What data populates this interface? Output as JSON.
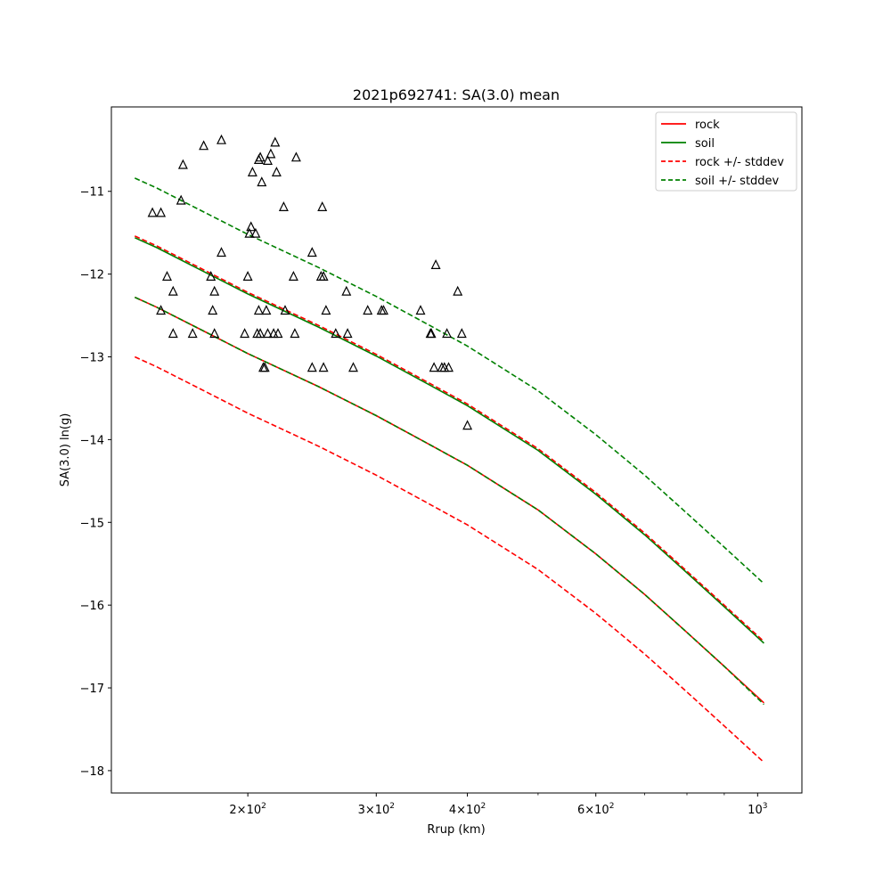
{
  "chart_data": {
    "type": "line",
    "title": "2021p692741: SA(3.0) mean",
    "xlabel": "Rrup (km)",
    "ylabel": "SA(3.0) ln(g)",
    "xscale": "log",
    "xlim": [
      130,
      1150
    ],
    "ylim": [
      -18.27,
      -9.98
    ],
    "grid": false,
    "legend_position": "top-right",
    "xticks": [
      {
        "value": 200,
        "base": "2",
        "exp": "2"
      },
      {
        "value": 300,
        "base": "3",
        "exp": "2"
      },
      {
        "value": 400,
        "base": "4",
        "exp": "2"
      },
      {
        "value": 600,
        "base": "6",
        "exp": "2"
      },
      {
        "value": 1000,
        "base": "10",
        "exp": "3"
      }
    ],
    "xminorticks": [
      500,
      700,
      800,
      900
    ],
    "yticks": [
      {
        "value": -11,
        "label": "−11"
      },
      {
        "value": -12,
        "label": "−12"
      },
      {
        "value": -13,
        "label": "−13"
      },
      {
        "value": -14,
        "label": "−14"
      },
      {
        "value": -15,
        "label": "−15"
      },
      {
        "value": -16,
        "label": "−16"
      },
      {
        "value": -17,
        "label": "−17"
      },
      {
        "value": -18,
        "label": "−18"
      }
    ],
    "x": [
      140,
      150,
      175,
      200,
      250,
      300,
      350,
      400,
      500,
      600,
      700,
      800,
      900,
      1020
    ],
    "series": [
      {
        "name": "rock",
        "color": "#ff0000",
        "style": "solid",
        "values": [
          -12.28,
          -12.4,
          -12.7,
          -12.96,
          -13.36,
          -13.71,
          -14.03,
          -14.31,
          -14.85,
          -15.38,
          -15.87,
          -16.33,
          -16.74,
          -17.18
        ]
      },
      {
        "name": "soil",
        "color": "#008000",
        "style": "solid",
        "values": [
          -11.56,
          -11.68,
          -11.98,
          -12.24,
          -12.64,
          -12.99,
          -13.31,
          -13.59,
          -14.13,
          -14.66,
          -15.15,
          -15.61,
          -16.02,
          -16.46
        ]
      },
      {
        "name": "rock +/- stddev",
        "color": "#ff0000",
        "style": "dashed",
        "values": [
          -13.0,
          -13.12,
          -13.42,
          -13.68,
          -14.08,
          -14.43,
          -14.75,
          -15.03,
          -15.57,
          -16.1,
          -16.59,
          -17.05,
          -17.46,
          -17.9
        ]
      },
      {
        "name": "",
        "color": "#ff0000",
        "style": "dashed",
        "values": [
          -11.54,
          -11.66,
          -11.96,
          -12.22,
          -12.62,
          -12.97,
          -13.29,
          -13.57,
          -14.11,
          -14.64,
          -15.13,
          -15.59,
          -16.0,
          -16.44
        ]
      },
      {
        "name": "soil +/- stddev",
        "color": "#008000",
        "style": "dashed",
        "values": [
          -10.84,
          -10.96,
          -11.26,
          -11.52,
          -11.92,
          -12.27,
          -12.59,
          -12.87,
          -13.41,
          -13.94,
          -14.43,
          -14.89,
          -15.3,
          -15.74
        ]
      },
      {
        "name": "",
        "color": "#008000",
        "style": "dashed",
        "values": [
          -12.28,
          -12.4,
          -12.7,
          -12.96,
          -13.36,
          -13.71,
          -14.03,
          -14.31,
          -14.85,
          -15.38,
          -15.87,
          -16.33,
          -16.74,
          -17.2
        ]
      }
    ],
    "legend": [
      {
        "label": "rock",
        "color": "#ff0000",
        "style": "solid"
      },
      {
        "label": "soil",
        "color": "#008000",
        "style": "solid"
      },
      {
        "label": "rock +/- stddev",
        "color": "#ff0000",
        "style": "dashed"
      },
      {
        "label": "soil +/- stddev",
        "color": "#008000",
        "style": "dashed"
      }
    ],
    "scatter": [
      [
        148,
        -11.26
      ],
      [
        152,
        -11.26
      ],
      [
        152,
        -12.44
      ],
      [
        155,
        -12.03
      ],
      [
        158,
        -12.21
      ],
      [
        158,
        -12.72
      ],
      [
        162,
        -11.11
      ],
      [
        163,
        -10.68
      ],
      [
        168,
        -12.72
      ],
      [
        174,
        -10.45
      ],
      [
        178,
        -12.03
      ],
      [
        179,
        -12.44
      ],
      [
        180,
        -12.21
      ],
      [
        180,
        -12.72
      ],
      [
        184,
        -10.38
      ],
      [
        184,
        -11.74
      ],
      [
        198,
        -12.72
      ],
      [
        200,
        -12.03
      ],
      [
        201,
        -11.51
      ],
      [
        202,
        -11.43
      ],
      [
        203,
        -10.77
      ],
      [
        205,
        -11.51
      ],
      [
        206,
        -12.72
      ],
      [
        207,
        -10.62
      ],
      [
        207,
        -12.44
      ],
      [
        208,
        -10.59
      ],
      [
        208,
        -12.72
      ],
      [
        209,
        -10.89
      ],
      [
        210,
        -13.13
      ],
      [
        211,
        -13.13
      ],
      [
        212,
        -12.44
      ],
      [
        213,
        -10.63
      ],
      [
        213,
        -12.72
      ],
      [
        215,
        -10.55
      ],
      [
        217,
        -12.72
      ],
      [
        218,
        -10.41
      ],
      [
        219,
        -10.77
      ],
      [
        220,
        -12.72
      ],
      [
        224,
        -11.19
      ],
      [
        225,
        -12.44
      ],
      [
        231,
        -12.03
      ],
      [
        232,
        -12.72
      ],
      [
        233,
        -10.59
      ],
      [
        245,
        -11.74
      ],
      [
        245,
        -13.13
      ],
      [
        252,
        -12.03
      ],
      [
        253,
        -11.19
      ],
      [
        254,
        -12.03
      ],
      [
        254,
        -13.13
      ],
      [
        256,
        -12.44
      ],
      [
        264,
        -12.72
      ],
      [
        273,
        -12.21
      ],
      [
        274,
        -12.72
      ],
      [
        279,
        -13.13
      ],
      [
        292,
        -12.44
      ],
      [
        305,
        -12.44
      ],
      [
        307,
        -12.44
      ],
      [
        345,
        -12.44
      ],
      [
        356,
        -12.72
      ],
      [
        357,
        -12.72
      ],
      [
        360,
        -13.13
      ],
      [
        362,
        -11.89
      ],
      [
        369,
        -13.13
      ],
      [
        372,
        -13.13
      ],
      [
        375,
        -12.72
      ],
      [
        377,
        -13.13
      ],
      [
        388,
        -12.21
      ],
      [
        393,
        -12.72
      ],
      [
        400,
        -13.83
      ]
    ]
  }
}
